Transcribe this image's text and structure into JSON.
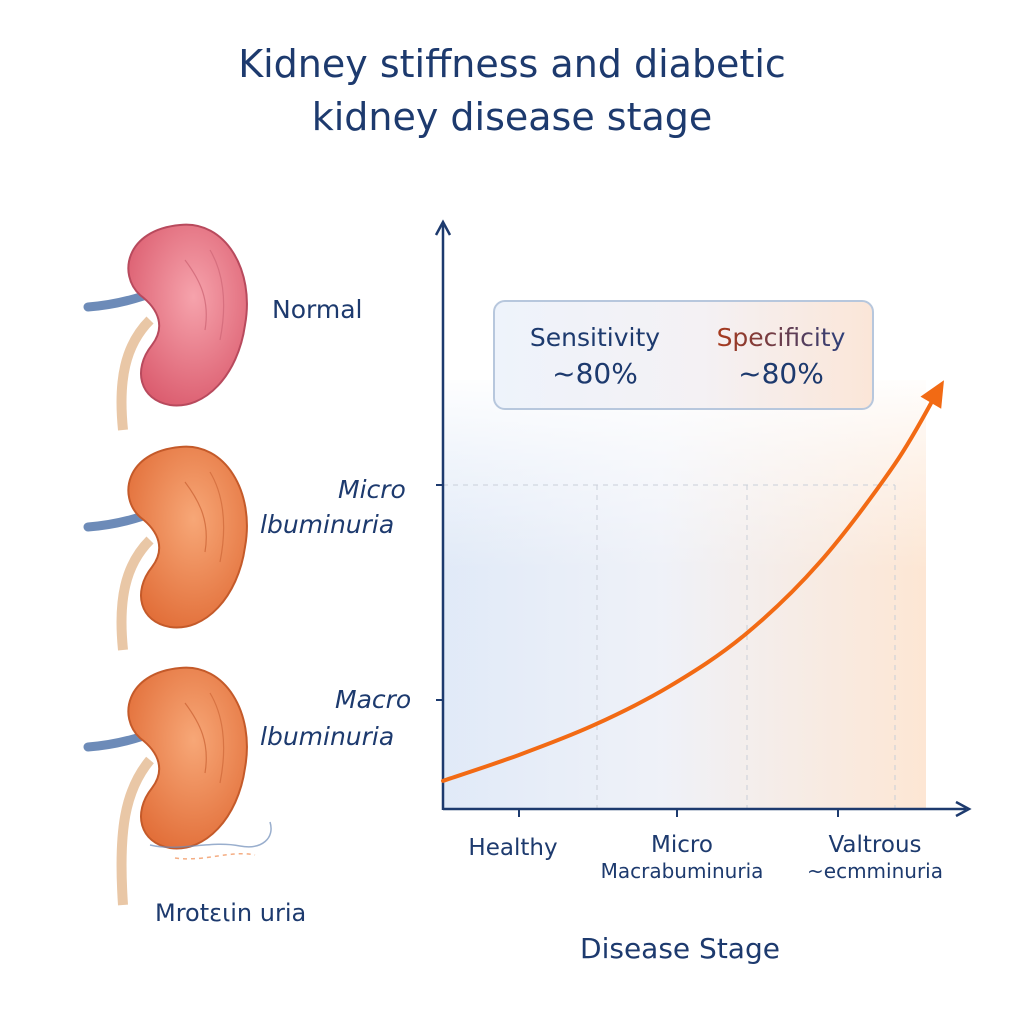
{
  "title": {
    "line1": "Kidney stiffness and diabetic",
    "line2": "kidney disease stage"
  },
  "kidneys": [
    {
      "label": "Normal",
      "color": "#e96a7c"
    },
    {
      "label_line1": "Micro",
      "label_line2": "lbuminuria",
      "color": "#f08a4f"
    },
    {
      "label_line1": "Macro",
      "label_line2": "lbuminuria",
      "color": "#f08346"
    }
  ],
  "proteinuria_label": "Mrotειin uria",
  "stats": {
    "sensitivity_label": "Sensitivity",
    "sensitivity_value": "~80%",
    "specificity_label": "Specificity",
    "specificity_value": "~80%"
  },
  "colors": {
    "text": "#1d3a6e",
    "curve": "#f26a14",
    "axis": "#1d3a6e",
    "band_low": "#dce7f6",
    "band_high": "#fde3cf"
  },
  "chart_data": {
    "type": "line",
    "categories": [
      "Healthy",
      "Micro",
      "Valtrous"
    ],
    "category_sublabels": [
      "",
      "Macrabuminuria",
      "~ecmminuria"
    ],
    "xlabel": "Disease Stage",
    "ylabel": "",
    "x": [
      0,
      0.5,
      1,
      1.5,
      2,
      2.5,
      3,
      3.3
    ],
    "y": [
      0.04,
      0.1,
      0.17,
      0.26,
      0.38,
      0.55,
      0.78,
      0.96
    ],
    "ylim": [
      0,
      1
    ],
    "xlim": [
      0,
      3.4
    ],
    "arrow_at_end": true,
    "grid": "dashed vertical stage dividers"
  }
}
